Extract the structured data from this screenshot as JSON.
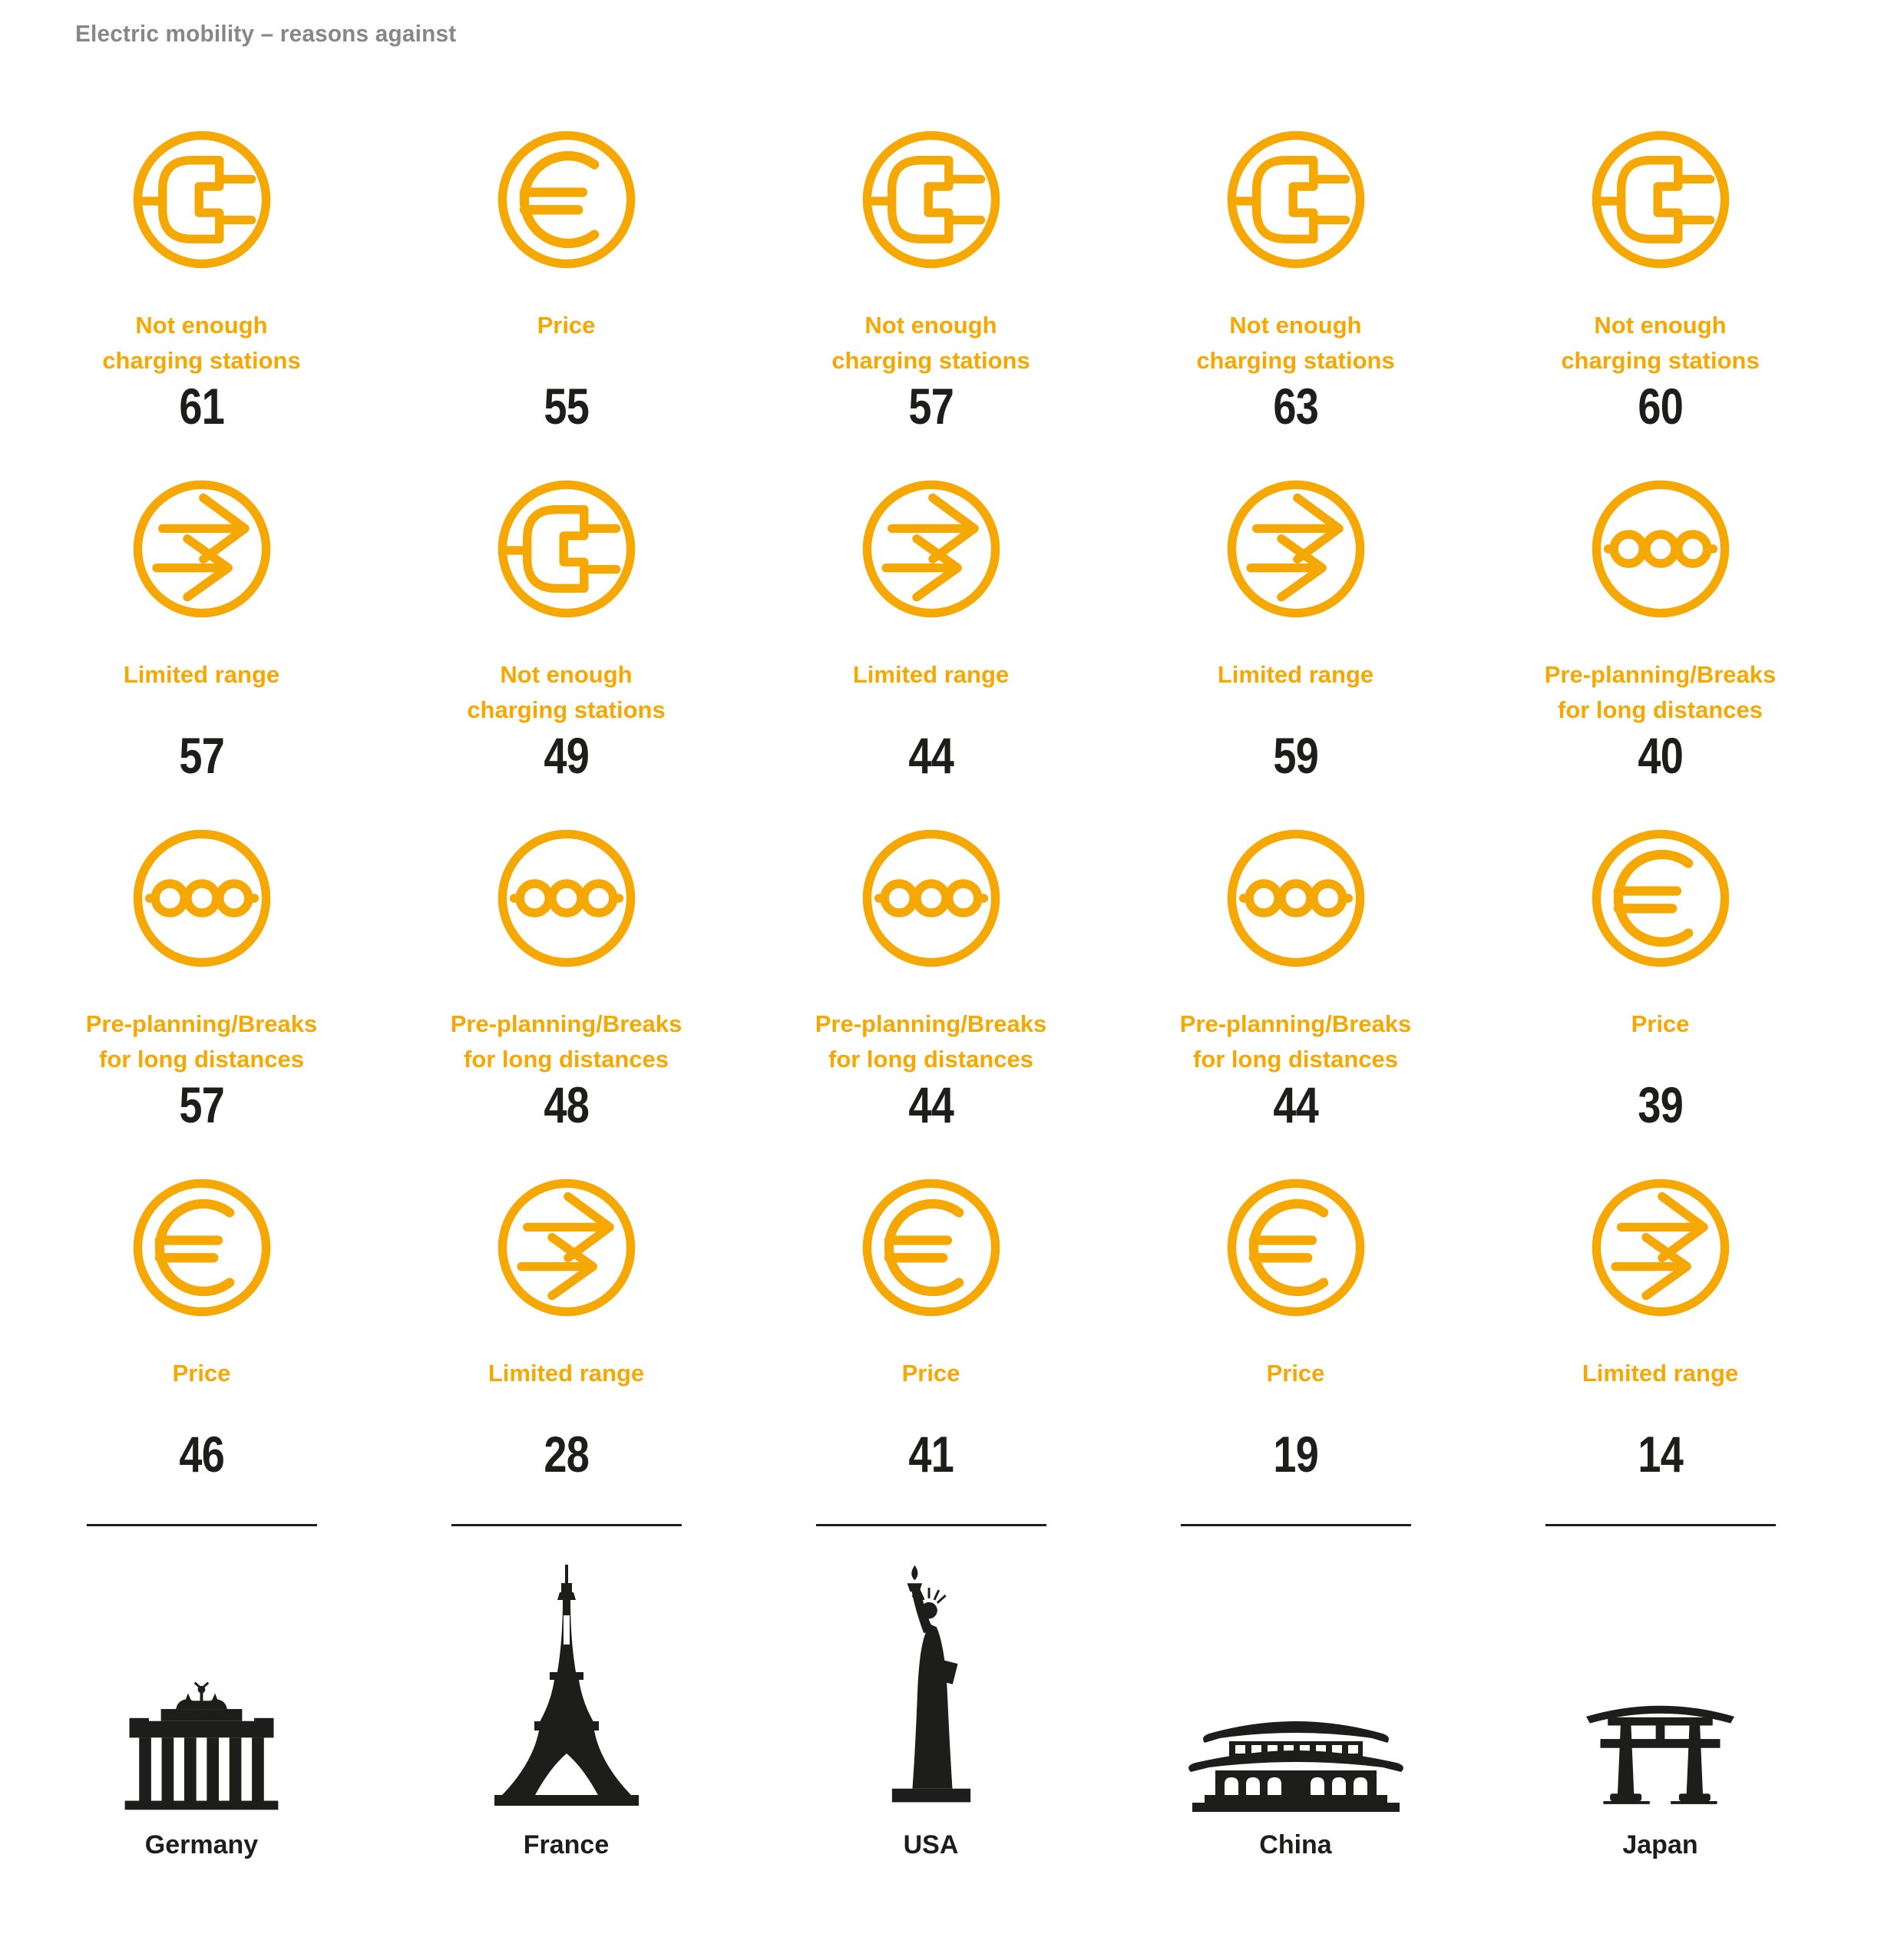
{
  "title": "Electric mobility – reasons against",
  "colors": {
    "accent": "#F5A802",
    "ink": "#1D1D1B",
    "title_gray": "#878787"
  },
  "columns": [
    {
      "country": "Germany",
      "landmark_icon": "brandenburg-gate",
      "reasons": [
        {
          "icon": "charging-plug",
          "label_lines": [
            "Not enough",
            "charging stations"
          ],
          "value": "61"
        },
        {
          "icon": "double-arrow",
          "label_lines": [
            "Limited range"
          ],
          "value": "57"
        },
        {
          "icon": "route-stops",
          "label_lines": [
            "Pre-planning/Breaks",
            "for long distances"
          ],
          "value": "57"
        },
        {
          "icon": "euro",
          "label_lines": [
            "Price"
          ],
          "value": "46"
        }
      ]
    },
    {
      "country": "France",
      "landmark_icon": "eiffel-tower",
      "reasons": [
        {
          "icon": "euro",
          "label_lines": [
            "Price"
          ],
          "value": "55"
        },
        {
          "icon": "charging-plug",
          "label_lines": [
            "Not enough",
            "charging stations"
          ],
          "value": "49"
        },
        {
          "icon": "route-stops",
          "label_lines": [
            "Pre-planning/Breaks",
            "for long distances"
          ],
          "value": "48"
        },
        {
          "icon": "double-arrow",
          "label_lines": [
            "Limited range"
          ],
          "value": "28"
        }
      ]
    },
    {
      "country": "USA",
      "landmark_icon": "statue-of-liberty",
      "reasons": [
        {
          "icon": "charging-plug",
          "label_lines": [
            "Not enough",
            "charging stations"
          ],
          "value": "57"
        },
        {
          "icon": "double-arrow",
          "label_lines": [
            "Limited range"
          ],
          "value": "44"
        },
        {
          "icon": "route-stops",
          "label_lines": [
            "Pre-planning/Breaks",
            "for long distances"
          ],
          "value": "44"
        },
        {
          "icon": "euro",
          "label_lines": [
            "Price"
          ],
          "value": "41"
        }
      ]
    },
    {
      "country": "China",
      "landmark_icon": "china-temple",
      "reasons": [
        {
          "icon": "charging-plug",
          "label_lines": [
            "Not enough",
            "charging stations"
          ],
          "value": "63"
        },
        {
          "icon": "double-arrow",
          "label_lines": [
            "Limited range"
          ],
          "value": "59"
        },
        {
          "icon": "route-stops",
          "label_lines": [
            "Pre-planning/Breaks",
            "for long distances"
          ],
          "value": "44"
        },
        {
          "icon": "euro",
          "label_lines": [
            "Price"
          ],
          "value": "19"
        }
      ]
    },
    {
      "country": "Japan",
      "landmark_icon": "torii-gate",
      "reasons": [
        {
          "icon": "charging-plug",
          "label_lines": [
            "Not enough",
            "charging stations"
          ],
          "value": "60"
        },
        {
          "icon": "route-stops",
          "label_lines": [
            "Pre-planning/Breaks",
            "for long distances"
          ],
          "value": "40"
        },
        {
          "icon": "euro",
          "label_lines": [
            "Price"
          ],
          "value": "39"
        },
        {
          "icon": "double-arrow",
          "label_lines": [
            "Limited range"
          ],
          "value": "14"
        }
      ]
    }
  ],
  "chart_data": {
    "type": "table",
    "title": "Electric mobility – reasons against",
    "categories": [
      "Germany",
      "France",
      "USA",
      "China",
      "Japan"
    ],
    "series": [
      {
        "name": "Not enough charging stations",
        "values": [
          61,
          49,
          57,
          63,
          60
        ]
      },
      {
        "name": "Limited range",
        "values": [
          57,
          28,
          44,
          59,
          14
        ]
      },
      {
        "name": "Pre-planning/Breaks for long distances",
        "values": [
          57,
          48,
          44,
          44,
          40
        ]
      },
      {
        "name": "Price",
        "values": [
          46,
          55,
          41,
          19,
          39
        ]
      }
    ],
    "notes": "Each country column lists its reasons in descending order of the shown value; icons: charging plug, double arrow (range), route with stops (pre-planning), euro sign (price)."
  }
}
